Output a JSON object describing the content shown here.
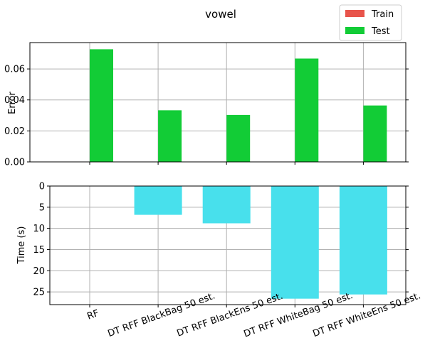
{
  "chart_data": [
    {
      "type": "bar",
      "title": "vowel",
      "xlabel": "",
      "ylabel": "Error",
      "ylim": [
        0,
        0.077
      ],
      "yticks": [
        "0.00",
        "0.02",
        "0.04",
        "0.06"
      ],
      "categories": [
        "RF",
        "DT RFF BlackBag 50 est.",
        "DT RFF BlackEns 50 est.",
        "DT RFF WhiteBag 50 est.",
        "DT RFF WhiteEns 50 est."
      ],
      "series": [
        {
          "name": "Train",
          "color": "#e8544b",
          "values": [
            0,
            0,
            0,
            0,
            0
          ]
        },
        {
          "name": "Test",
          "color": "#12cc36",
          "values": [
            0.0727,
            0.0333,
            0.0303,
            0.0667,
            0.0364
          ]
        }
      ],
      "legend": "top-right",
      "grid": true
    },
    {
      "type": "bar",
      "xlabel": "",
      "ylabel": "Time (s)",
      "ylim": [
        28,
        0
      ],
      "inverted_y": true,
      "yticks": [
        "0",
        "5",
        "10",
        "15",
        "20",
        "25"
      ],
      "categories": [
        "RF",
        "DT RFF BlackBag 50 est.",
        "DT RFF BlackEns 50 est.",
        "DT RFF WhiteBag 50 est.",
        "DT RFF WhiteEns 50 est."
      ],
      "series": [
        {
          "color": "#48e0ec",
          "values": [
            0,
            6.8,
            8.8,
            26.6,
            25.6
          ]
        }
      ],
      "grid": true
    }
  ]
}
